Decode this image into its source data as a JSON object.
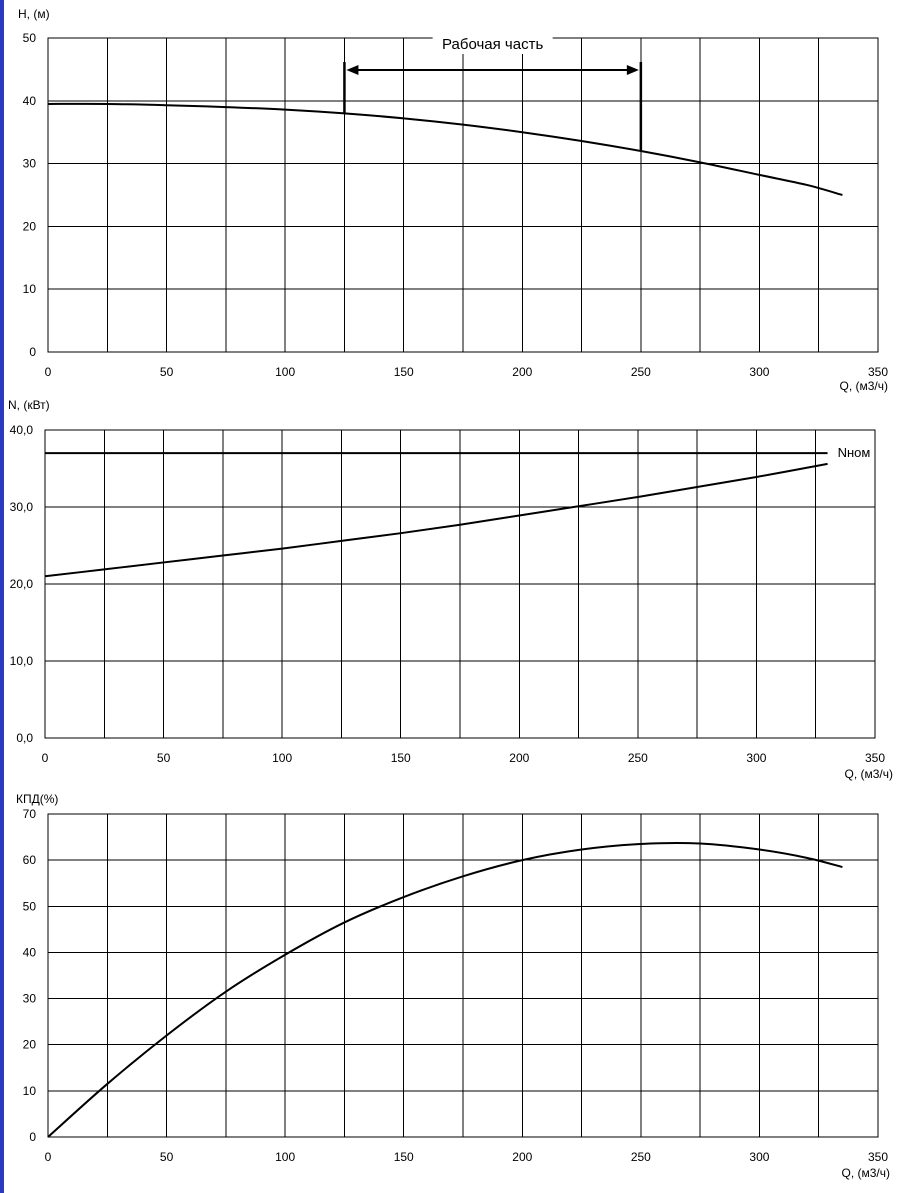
{
  "chart_data": [
    {
      "id": "head",
      "type": "line",
      "ylabel": "H, (м)",
      "xlabel": "Q, (м3/ч)",
      "xlim": [
        0,
        350
      ],
      "ylim": [
        0,
        50
      ],
      "x_ticks": [
        "0",
        "50",
        "100",
        "150",
        "200",
        "250",
        "300",
        "350"
      ],
      "y_ticks": [
        "0",
        "10",
        "20",
        "30",
        "40",
        "50"
      ],
      "x_grid_step": 25,
      "y_grid_step": 10,
      "grid": true,
      "series": [
        {
          "x": [
            0,
            25,
            50,
            75,
            100,
            125,
            150,
            175,
            200,
            225,
            250,
            275,
            300,
            320,
            335
          ],
          "y": [
            39.5,
            39.5,
            39.3,
            39.0,
            38.6,
            38.0,
            37.2,
            36.2,
            35.0,
            33.6,
            32.0,
            30.2,
            28.2,
            26.6,
            25.0
          ]
        }
      ],
      "annotation": {
        "text": "Рабочая часть",
        "x_from": 125,
        "x_to": 250
      }
    },
    {
      "id": "power",
      "type": "line",
      "ylabel": "N, (кВт)",
      "xlabel": "Q, (м3/ч)",
      "xlim": [
        0,
        350
      ],
      "ylim": [
        0,
        40
      ],
      "x_ticks": [
        "0",
        "50",
        "100",
        "150",
        "200",
        "250",
        "300",
        "350"
      ],
      "y_ticks": [
        "0,0",
        "10,0",
        "20,0",
        "30,0",
        "40,0"
      ],
      "x_grid_step": 25,
      "y_grid_step": 10,
      "grid": true,
      "series": [
        {
          "x": [
            0,
            25,
            50,
            75,
            100,
            125,
            150,
            175,
            200,
            225,
            250,
            275,
            300,
            330
          ],
          "y": [
            21.0,
            21.9,
            22.8,
            23.7,
            24.6,
            25.6,
            26.6,
            27.7,
            28.9,
            30.1,
            31.3,
            32.6,
            33.9,
            35.6
          ]
        }
      ],
      "reference_line": {
        "label": "Nном",
        "y": 37.0
      }
    },
    {
      "id": "efficiency",
      "type": "line",
      "ylabel": "КПД(%)",
      "xlabel": "Q, (м3/ч)",
      "xlim": [
        0,
        350
      ],
      "ylim": [
        0,
        70
      ],
      "x_ticks": [
        "0",
        "50",
        "100",
        "150",
        "200",
        "250",
        "300",
        "350"
      ],
      "y_ticks": [
        "0",
        "10",
        "20",
        "30",
        "40",
        "50",
        "60",
        "70"
      ],
      "x_grid_step": 25,
      "y_grid_step": 10,
      "grid": true,
      "series": [
        {
          "x": [
            0,
            25,
            50,
            75,
            100,
            125,
            150,
            175,
            200,
            225,
            250,
            275,
            300,
            320,
            335
          ],
          "y": [
            0,
            11.5,
            22,
            31.5,
            39.5,
            46.5,
            52,
            56.5,
            60,
            62.3,
            63.5,
            63.6,
            62.3,
            60.5,
            58.5
          ]
        }
      ]
    }
  ]
}
